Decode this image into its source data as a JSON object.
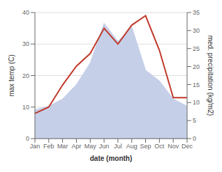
{
  "chart_data": {
    "type": "line",
    "categories": [
      "Jan",
      "Feb",
      "Mar",
      "Apr",
      "May",
      "Jun",
      "Jul",
      "Aug",
      "Sep",
      "Oct",
      "Nov",
      "Dec"
    ],
    "series": [
      {
        "type": "area",
        "color": "#c5cfe8",
        "axis": "y2",
        "values": [
          8,
          9,
          11,
          15,
          21,
          32,
          27,
          31,
          19,
          16,
          11,
          9
        ]
      },
      {
        "type": "line",
        "color": "#c0392b",
        "values": [
          8,
          10,
          17,
          23,
          27,
          35,
          30,
          36,
          39,
          28,
          13,
          13
        ]
      }
    ],
    "xlabel": "date (month)",
    "ylabel": "max temp (C)",
    "y2label": "med. precipitation (kg/m2)",
    "ylim": [
      0,
      40
    ],
    "yticks": [
      0,
      10,
      20,
      30,
      40
    ],
    "y2lim": [
      0,
      35
    ],
    "y2ticks": [
      0,
      5,
      10,
      15,
      20,
      25,
      30,
      35
    ],
    "grid": true
  }
}
